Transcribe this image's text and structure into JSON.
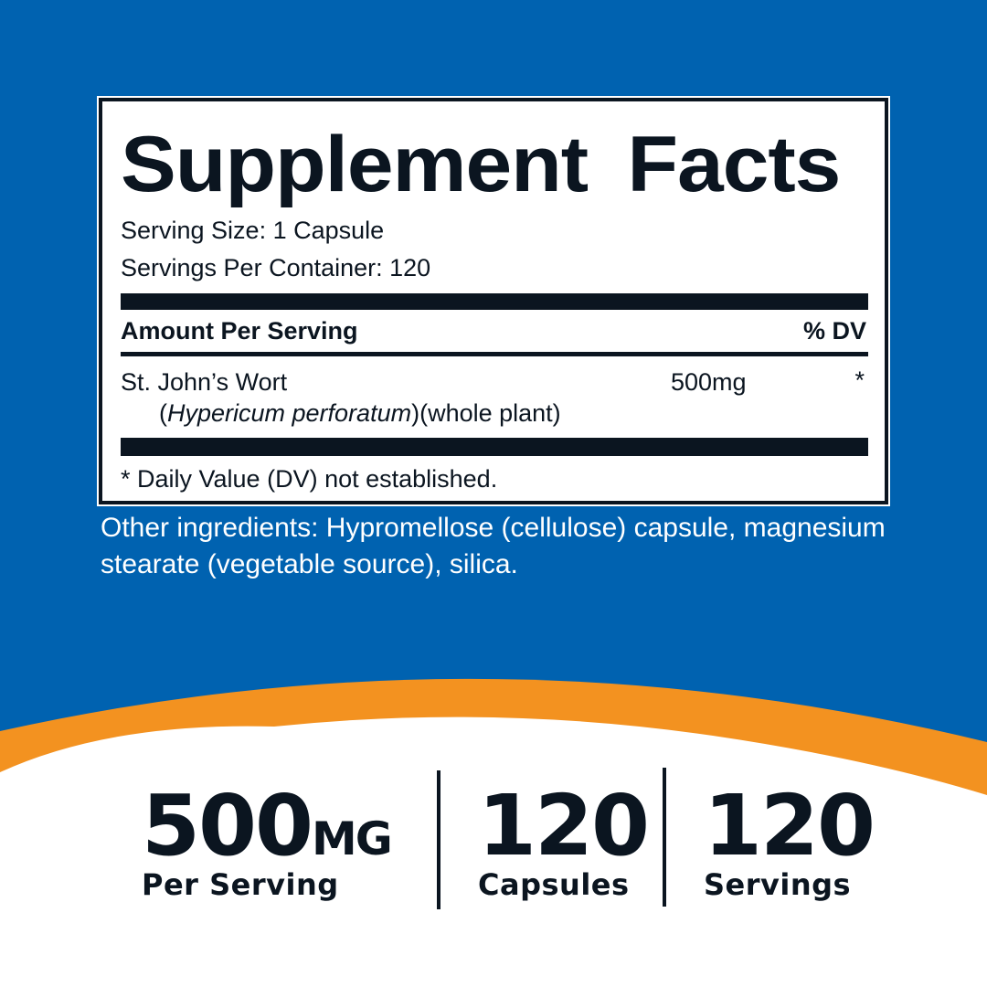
{
  "colors": {
    "background": "#0062B0",
    "accent": "#F39220",
    "text": "#0B1520"
  },
  "facts": {
    "title": "Supplement Facts",
    "serving_size": "Serving Size: 1 Capsule",
    "servings_per_container": "Servings Per Container: 120",
    "amount_header": "Amount Per Serving",
    "dv_header": "% DV",
    "ingredient_name": "St. John’s Wort",
    "ingredient_latin": "Hypericum perforatum",
    "ingredient_part": "(whole plant)",
    "ingredient_amount": "500mg",
    "ingredient_dv": "*",
    "footnote": "* Daily Value (DV) not established."
  },
  "other_ingredients": "Other ingredients: Hypromellose (cellulose) capsule, magnesium stearate (vegetable source), silica.",
  "stats": [
    {
      "value": "500",
      "unit": "MG",
      "label": "Per Serving"
    },
    {
      "value": "120",
      "label": "Capsules"
    },
    {
      "value": "120",
      "label": "Servings"
    }
  ]
}
